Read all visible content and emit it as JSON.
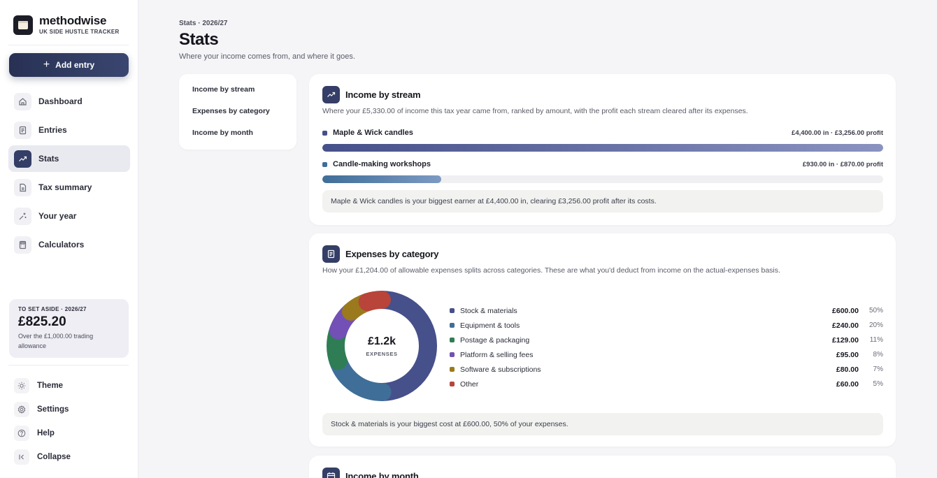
{
  "brand": {
    "name": "methodwise",
    "tagline": "UK SIDE HUSTLE TRACKER"
  },
  "sidebar": {
    "add_entry": "Add entry",
    "items": [
      {
        "label": "Dashboard",
        "icon": "home-icon",
        "active": false
      },
      {
        "label": "Entries",
        "icon": "list-icon",
        "active": false
      },
      {
        "label": "Stats",
        "icon": "trend-icon",
        "active": true
      },
      {
        "label": "Tax summary",
        "icon": "document-icon",
        "active": false
      },
      {
        "label": "Your year",
        "icon": "sparkle-icon",
        "active": false
      },
      {
        "label": "Calculators",
        "icon": "calculator-icon",
        "active": false
      }
    ],
    "set_aside": {
      "label": "TO SET ASIDE · 2026/27",
      "amount": "£825.20",
      "note": "Over the £1,000.00 trading allowance"
    },
    "bottom": [
      {
        "label": "Theme",
        "icon": "sun-icon"
      },
      {
        "label": "Settings",
        "icon": "gear-icon"
      },
      {
        "label": "Help",
        "icon": "help-icon"
      },
      {
        "label": "Collapse",
        "icon": "collapse-icon"
      }
    ]
  },
  "header": {
    "crumb": "Stats · 2026/27",
    "title": "Stats",
    "subtitle": "Where your income comes from, and where it goes."
  },
  "subnav": [
    "Income by stream",
    "Expenses by category",
    "Income by month"
  ],
  "income_card": {
    "title": "Income by stream",
    "description": "Where your £5,330.00 of income this tax year came from, ranked by amount, with the profit each stream cleared after its expenses.",
    "streams": [
      {
        "name": "Maple & Wick candles",
        "meta": "£4,400.00 in · £3,256.00 profit",
        "value": 4400,
        "color": "#46508a"
      },
      {
        "name": "Candle-making workshops",
        "meta": "£930.00 in · £870.00 profit",
        "value": 930,
        "color": "#3f6e98"
      }
    ],
    "max": 4400,
    "callout": "Maple & Wick candles is your biggest earner at £4,400.00 in, clearing £3,256.00 profit after its costs."
  },
  "expenses_card": {
    "title": "Expenses by category",
    "description": "How your £1,204.00 of allowable expenses splits across categories. These are what you'd deduct from income on the actual-expenses basis.",
    "center_value": "£1.2k",
    "center_label": "EXPENSES",
    "categories": [
      {
        "name": "Stock & materials",
        "amount": "£600.00",
        "pct": "50%",
        "value": 600,
        "color": "#46508a"
      },
      {
        "name": "Equipment & tools",
        "amount": "£240.00",
        "pct": "20%",
        "value": 240,
        "color": "#3f6e98"
      },
      {
        "name": "Postage & packaging",
        "amount": "£129.00",
        "pct": "11%",
        "value": 129,
        "color": "#2f7d54"
      },
      {
        "name": "Platform & selling fees",
        "amount": "£95.00",
        "pct": "8%",
        "value": 95,
        "color": "#7250b5"
      },
      {
        "name": "Software & subscriptions",
        "amount": "£80.00",
        "pct": "7%",
        "value": 80,
        "color": "#9a7a1c"
      },
      {
        "name": "Other",
        "amount": "£60.00",
        "pct": "5%",
        "value": 60,
        "color": "#b8443a"
      }
    ],
    "callout": "Stock & materials is your biggest cost at £600.00, 50% of your expenses."
  },
  "month_card": {
    "title": "Income by month"
  }
}
